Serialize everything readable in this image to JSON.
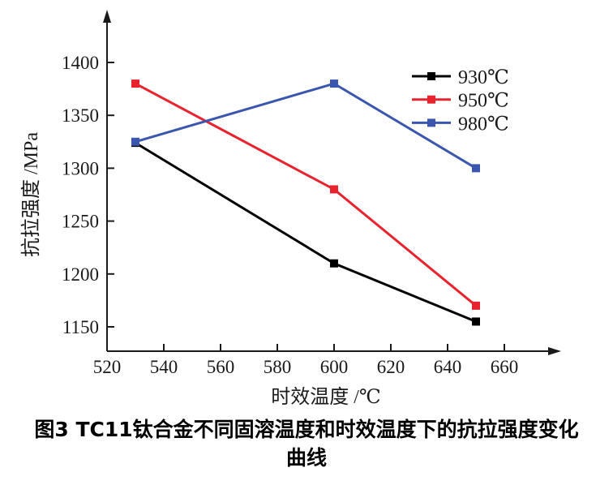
{
  "figure": {
    "caption_line1": "图3  TC11钛合金不同固溶温度和时效温度下的抗拉强度变化",
    "caption_line2": "曲线"
  },
  "chart_data": {
    "type": "line",
    "title": "",
    "xlabel": "时效温度 /℃",
    "ylabel": "抗拉强度 /MPa",
    "x": [
      530,
      600,
      650
    ],
    "xticks": [
      520,
      540,
      560,
      580,
      600,
      620,
      640,
      660
    ],
    "yticks": [
      1150,
      1200,
      1250,
      1300,
      1350,
      1400
    ],
    "xlim": [
      520,
      680
    ],
    "ylim": [
      1127,
      1450
    ],
    "grid": false,
    "legend_position": "upper right",
    "axis_color": "#1a1a1a",
    "series": [
      {
        "name": "930℃",
        "color": "#000000",
        "values": [
          1324,
          1210,
          1155
        ]
      },
      {
        "name": "950℃",
        "color": "#e8232d",
        "values": [
          1380,
          1280,
          1170
        ]
      },
      {
        "name": "980℃",
        "color": "#3b56ae",
        "values": [
          1325,
          1380,
          1300
        ]
      }
    ]
  }
}
